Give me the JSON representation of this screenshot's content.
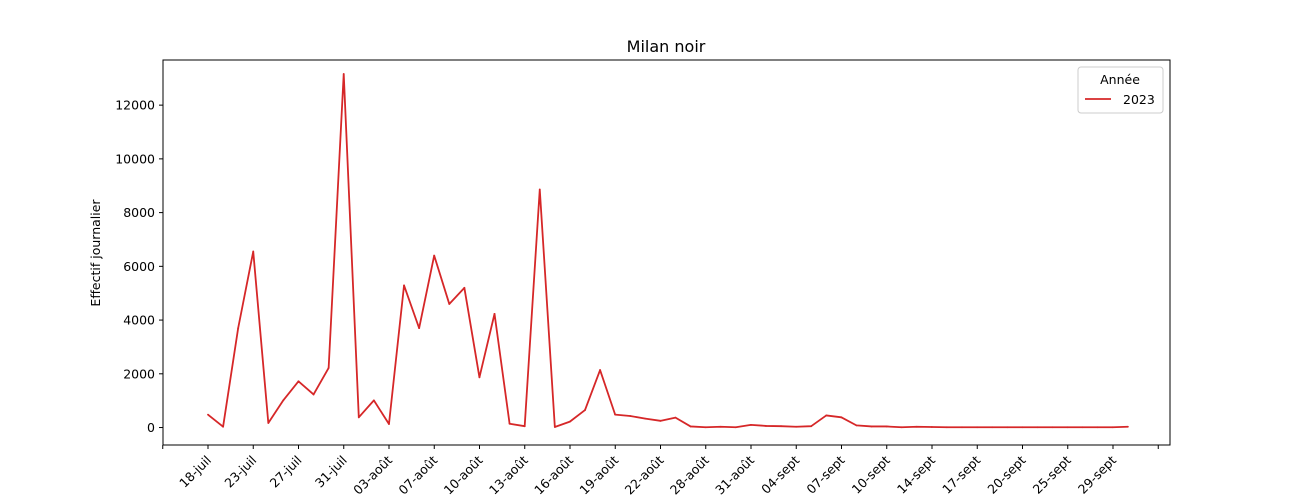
{
  "chart_data": {
    "type": "line",
    "title": "Milan noir",
    "xlabel": "",
    "ylabel": "Effectif journalier",
    "ylim": [
      -650,
      13680
    ],
    "yticks": [
      0,
      2000,
      4000,
      6000,
      8000,
      10000,
      12000
    ],
    "x_tick_labels": [
      "18-juil",
      "23-juil",
      "27-juil",
      "31-juil",
      "03-août",
      "07-août",
      "10-août",
      "13-août",
      "16-août",
      "19-août",
      "22-août",
      "28-août",
      "31-août",
      "04-sept",
      "07-sept",
      "10-sept",
      "14-sept",
      "17-sept",
      "20-sept",
      "25-sept",
      "29-sept"
    ],
    "legend": {
      "title": "Année",
      "position": "top-right"
    },
    "grid": false,
    "series": [
      {
        "name": "2023",
        "color": "#d62728",
        "values": [
          480,
          30,
          3700,
          6550,
          170,
          1020,
          1720,
          1230,
          2220,
          13160,
          380,
          1010,
          130,
          5290,
          3700,
          6400,
          4600,
          5200,
          1870,
          4230,
          140,
          50,
          8860,
          20,
          220,
          650,
          2140,
          480,
          430,
          330,
          250,
          370,
          40,
          10,
          30,
          10,
          100,
          60,
          50,
          30,
          50,
          450,
          380,
          80,
          40,
          40,
          10,
          30,
          20,
          10,
          10,
          10,
          10,
          10,
          10,
          10,
          10,
          10,
          10,
          10,
          10,
          30
        ]
      }
    ]
  }
}
